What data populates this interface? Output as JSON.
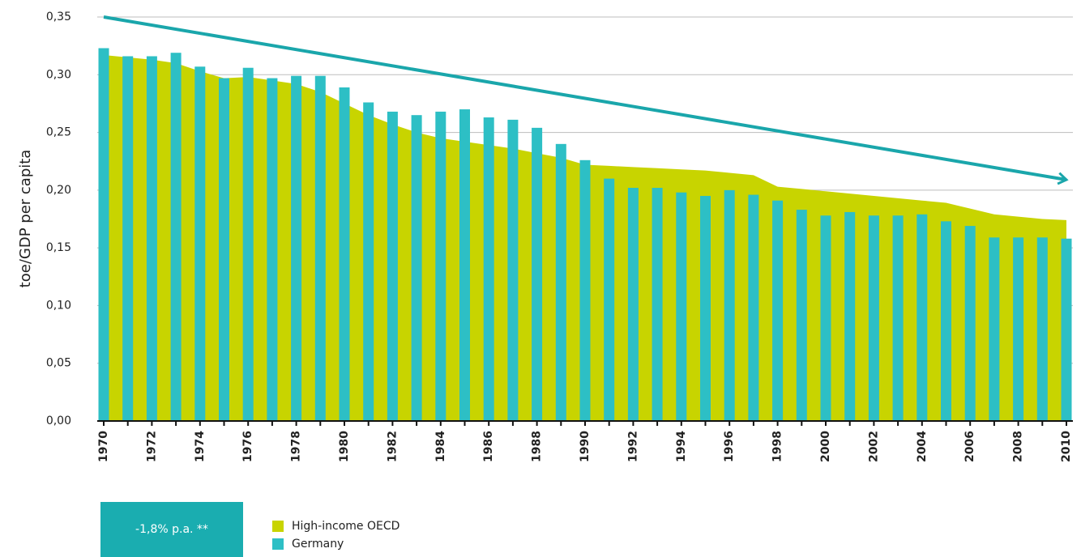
{
  "chart_data": {
    "type": "bar-area",
    "y_label": "toe/GDP per capita",
    "x": [
      1970,
      1971,
      1972,
      1973,
      1974,
      1975,
      1976,
      1977,
      1978,
      1979,
      1980,
      1981,
      1982,
      1983,
      1984,
      1985,
      1986,
      1987,
      1988,
      1989,
      1990,
      1991,
      1992,
      1993,
      1994,
      1995,
      1996,
      1997,
      1998,
      1999,
      2000,
      2001,
      2002,
      2003,
      2004,
      2005,
      2006,
      2007,
      2008,
      2009,
      2010
    ],
    "xlim": [
      1970,
      2010
    ],
    "xticks": [
      1970,
      1972,
      1974,
      1976,
      1978,
      1980,
      1982,
      1984,
      1986,
      1988,
      1990,
      1992,
      1994,
      1996,
      1998,
      2000,
      2002,
      2004,
      2006,
      2008,
      2010
    ],
    "ylim": [
      0,
      0.35
    ],
    "yticks": [
      {
        "value": 0,
        "label": "0,00"
      },
      {
        "value": 0.05,
        "label": "0,05"
      },
      {
        "value": 0.1,
        "label": "0,10"
      },
      {
        "value": 0.15,
        "label": "0,15"
      },
      {
        "value": 0.2,
        "label": "0,20"
      },
      {
        "value": 0.25,
        "label": "0,25"
      },
      {
        "value": 0.3,
        "label": "0,30"
      },
      {
        "value": 0.35,
        "label": "0,35"
      }
    ],
    "grid": true,
    "series": [
      {
        "name": "High-income OECD",
        "kind": "area",
        "color": "#c8d400",
        "values": [
          0.317,
          0.315,
          0.313,
          0.31,
          0.303,
          0.297,
          0.298,
          0.295,
          0.292,
          0.285,
          0.275,
          0.265,
          0.257,
          0.25,
          0.245,
          0.242,
          0.239,
          0.236,
          0.232,
          0.228,
          0.222,
          0.221,
          0.22,
          0.219,
          0.218,
          0.217,
          0.215,
          0.213,
          0.203,
          0.201,
          0.199,
          0.197,
          0.195,
          0.193,
          0.191,
          0.189,
          0.184,
          0.179,
          0.177,
          0.175,
          0.174
        ]
      },
      {
        "name": "Germany",
        "kind": "bar",
        "color": "#2dbfc5",
        "values": [
          0.323,
          0.316,
          0.316,
          0.319,
          0.307,
          0.297,
          0.306,
          0.297,
          0.299,
          0.299,
          0.289,
          0.276,
          0.268,
          0.265,
          0.268,
          0.27,
          0.263,
          0.261,
          0.254,
          0.24,
          0.226,
          0.21,
          0.202,
          0.202,
          0.198,
          0.195,
          0.2,
          0.196,
          0.191,
          0.183,
          0.178,
          0.181,
          0.178,
          0.178,
          0.179,
          0.173,
          0.169,
          0.159,
          0.159,
          0.159,
          0.158
        ]
      }
    ],
    "trend": {
      "x": [
        1970,
        2010
      ],
      "values": [
        0.35,
        0.209
      ],
      "color": "#1aa6ab"
    },
    "annotation": "-1,8% p.a. **"
  }
}
